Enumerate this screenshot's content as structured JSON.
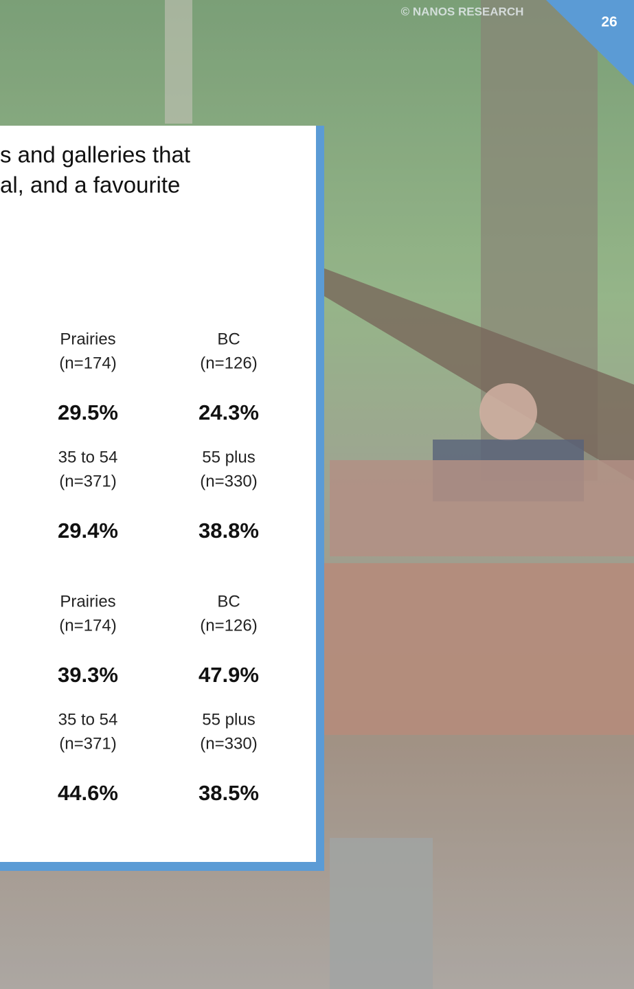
{
  "header": {
    "copyright": "© NANOS RESEARCH",
    "page_number": "26"
  },
  "question_lines": [
    "s and galleries that",
    "al, and a favourite"
  ],
  "sections": [
    {
      "rows": [
        {
          "cols": [
            {
              "label": "Prairies",
              "n": "(n=174)",
              "value": "29.5%"
            },
            {
              "label": "BC",
              "n": "(n=126)",
              "value": "24.3%"
            }
          ]
        },
        {
          "cols": [
            {
              "label": "35 to 54",
              "n": "(n=371)",
              "value": "29.4%"
            },
            {
              "label": "55 plus",
              "n": "(n=330)",
              "value": "38.8%"
            }
          ]
        }
      ]
    },
    {
      "rows": [
        {
          "cols": [
            {
              "label": "Prairies",
              "n": "(n=174)",
              "value": "39.3%"
            },
            {
              "label": "BC",
              "n": "(n=126)",
              "value": "47.9%"
            }
          ]
        },
        {
          "cols": [
            {
              "label": "35 to 54",
              "n": "(n=371)",
              "value": "44.6%"
            },
            {
              "label": "55 plus",
              "n": "(n=330)",
              "value": "38.5%"
            }
          ]
        }
      ]
    }
  ]
}
